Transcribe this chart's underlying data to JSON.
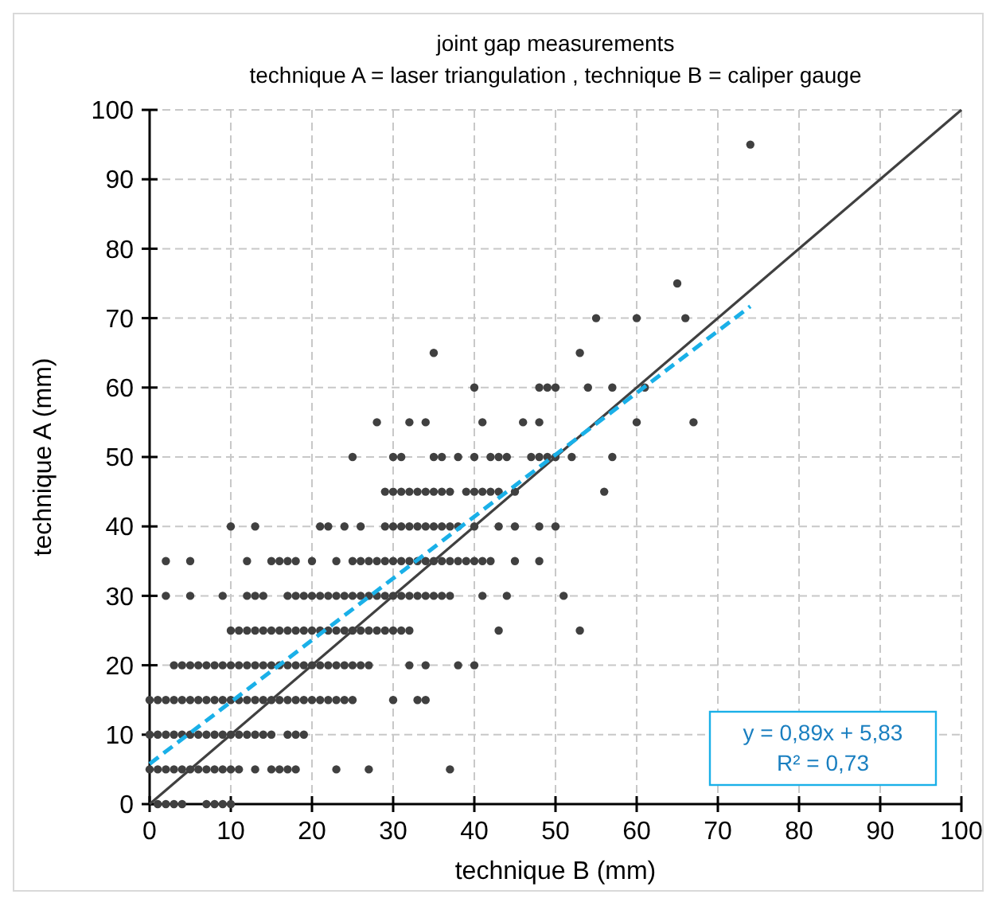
{
  "chart_data": {
    "type": "scatter",
    "title": "joint gap measurements",
    "subtitle": "technique A = laser triangulation , technique B = caliper gauge",
    "xlabel": "technique B (mm)",
    "ylabel": "technique A (mm)",
    "xlim": [
      0,
      100
    ],
    "ylim": [
      0,
      100
    ],
    "xticks": [
      0,
      10,
      20,
      30,
      40,
      50,
      60,
      70,
      80,
      90,
      100
    ],
    "yticks": [
      0,
      10,
      20,
      30,
      40,
      50,
      60,
      70,
      80,
      90,
      100
    ],
    "grid": true,
    "marker": "circle",
    "annotations": [
      "y = 0,89x + 5,83",
      "R² = 0,73"
    ],
    "series": [
      {
        "type": "scatter",
        "color": "#404040",
        "x": [
          1,
          2,
          3,
          4,
          7,
          8,
          9,
          10
        ],
        "values": [
          0,
          0,
          0,
          0,
          0,
          0,
          0,
          0
        ]
      },
      {
        "type": "scatter",
        "color": "#404040",
        "x": [
          0,
          1,
          2,
          3,
          4,
          5,
          6,
          7,
          8,
          9,
          10,
          11,
          13,
          15,
          16,
          17,
          18,
          23,
          27,
          37
        ],
        "values": [
          5,
          5,
          5,
          5,
          5,
          5,
          5,
          5,
          5,
          5,
          5,
          5,
          5,
          5,
          5,
          5,
          5,
          5,
          5,
          5
        ]
      },
      {
        "type": "scatter",
        "color": "#404040",
        "x": [
          0,
          1,
          2,
          3,
          4,
          5,
          6,
          7,
          8,
          9,
          10,
          11,
          12,
          13,
          14,
          15,
          17,
          18,
          19
        ],
        "values": [
          10,
          10,
          10,
          10,
          10,
          10,
          10,
          10,
          10,
          10,
          10,
          10,
          10,
          10,
          10,
          10,
          10,
          10,
          10
        ]
      },
      {
        "type": "scatter",
        "color": "#404040",
        "x": [
          0,
          1,
          2,
          3,
          4,
          5,
          6,
          7,
          8,
          9,
          10,
          11,
          12,
          13,
          14,
          15,
          16,
          17,
          18,
          19,
          20,
          21,
          22,
          23,
          24,
          25,
          30,
          33,
          34
        ],
        "values": [
          15,
          15,
          15,
          15,
          15,
          15,
          15,
          15,
          15,
          15,
          15,
          15,
          15,
          15,
          15,
          15,
          15,
          15,
          15,
          15,
          15,
          15,
          15,
          15,
          15,
          15,
          15,
          15,
          15
        ]
      },
      {
        "type": "scatter",
        "color": "#404040",
        "x": [
          3,
          4,
          5,
          6,
          7,
          8,
          9,
          10,
          11,
          12,
          13,
          14,
          15,
          16,
          17,
          18,
          19,
          20,
          21,
          22,
          23,
          24,
          25,
          26,
          27,
          32,
          34,
          38,
          40
        ],
        "values": [
          20,
          20,
          20,
          20,
          20,
          20,
          20,
          20,
          20,
          20,
          20,
          20,
          20,
          20,
          20,
          20,
          20,
          20,
          20,
          20,
          20,
          20,
          20,
          20,
          20,
          20,
          20,
          20,
          20
        ]
      },
      {
        "type": "scatter",
        "color": "#404040",
        "x": [
          10,
          11,
          12,
          13,
          14,
          15,
          16,
          17,
          18,
          19,
          20,
          21,
          22,
          23,
          24,
          25,
          26,
          27,
          28,
          29,
          30,
          31,
          32,
          43,
          53
        ],
        "values": [
          25,
          25,
          25,
          25,
          25,
          25,
          25,
          25,
          25,
          25,
          25,
          25,
          25,
          25,
          25,
          25,
          25,
          25,
          25,
          25,
          25,
          25,
          25,
          25,
          25
        ]
      },
      {
        "type": "scatter",
        "color": "#404040",
        "x": [
          2,
          5,
          9,
          12,
          13,
          14,
          17,
          18,
          19,
          20,
          21,
          22,
          23,
          24,
          25,
          26,
          27,
          28,
          29,
          30,
          31,
          32,
          33,
          34,
          35,
          36,
          37,
          41,
          44,
          51
        ],
        "values": [
          30,
          30,
          30,
          30,
          30,
          30,
          30,
          30,
          30,
          30,
          30,
          30,
          30,
          30,
          30,
          30,
          30,
          30,
          30,
          30,
          30,
          30,
          30,
          30,
          30,
          30,
          30,
          30,
          30,
          30
        ]
      },
      {
        "type": "scatter",
        "color": "#404040",
        "x": [
          2,
          5,
          12,
          15,
          16,
          17,
          18,
          20,
          23,
          25,
          26,
          27,
          28,
          29,
          30,
          31,
          32,
          33,
          34,
          35,
          36,
          37,
          38,
          39,
          40,
          41,
          42,
          45,
          48
        ],
        "values": [
          35,
          35,
          35,
          35,
          35,
          35,
          35,
          35,
          35,
          35,
          35,
          35,
          35,
          35,
          35,
          35,
          35,
          35,
          35,
          35,
          35,
          35,
          35,
          35,
          35,
          35,
          35,
          35,
          35
        ]
      },
      {
        "type": "scatter",
        "color": "#404040",
        "x": [
          10,
          13,
          21,
          22,
          24,
          26,
          29,
          30,
          31,
          32,
          33,
          34,
          35,
          36,
          37,
          38,
          40,
          43,
          45,
          48,
          50
        ],
        "values": [
          40,
          40,
          40,
          40,
          40,
          40,
          40,
          40,
          40,
          40,
          40,
          40,
          40,
          40,
          40,
          40,
          40,
          40,
          40,
          40,
          40
        ]
      },
      {
        "type": "scatter",
        "color": "#404040",
        "x": [
          29,
          30,
          31,
          32,
          33,
          34,
          35,
          36,
          37,
          39,
          40,
          41,
          42,
          43,
          45,
          56
        ],
        "values": [
          45,
          45,
          45,
          45,
          45,
          45,
          45,
          45,
          45,
          45,
          45,
          45,
          45,
          45,
          45,
          45
        ]
      },
      {
        "type": "scatter",
        "color": "#404040",
        "x": [
          25,
          30,
          31,
          35,
          36,
          38,
          40,
          42,
          43,
          44,
          47,
          48,
          49,
          50,
          52,
          57
        ],
        "values": [
          50,
          50,
          50,
          50,
          50,
          50,
          50,
          50,
          50,
          50,
          50,
          50,
          50,
          50,
          50,
          50
        ]
      },
      {
        "type": "scatter",
        "color": "#404040",
        "x": [
          28,
          32,
          34,
          41,
          46,
          48,
          60,
          67
        ],
        "values": [
          55,
          55,
          55,
          55,
          55,
          55,
          55,
          55
        ]
      },
      {
        "type": "scatter",
        "color": "#404040",
        "x": [
          40,
          48,
          49,
          50,
          54,
          57,
          61
        ],
        "values": [
          60,
          60,
          60,
          60,
          60,
          60,
          60
        ]
      },
      {
        "type": "scatter",
        "color": "#404040",
        "x": [
          35,
          53
        ],
        "values": [
          65,
          65
        ]
      },
      {
        "type": "scatter",
        "color": "#404040",
        "x": [
          55,
          60,
          66
        ],
        "values": [
          70,
          70,
          70
        ]
      },
      {
        "type": "scatter",
        "color": "#404040",
        "x": [
          65
        ],
        "values": [
          75
        ]
      },
      {
        "type": "scatter",
        "color": "#404040",
        "x": [
          74
        ],
        "values": [
          95
        ]
      },
      {
        "type": "line",
        "color": "#404040",
        "marker": "none",
        "line_style": "solid",
        "x": [
          0,
          100
        ],
        "values": [
          0,
          100
        ]
      },
      {
        "type": "line",
        "color": "#1ab0e8",
        "marker": "none",
        "line_style": "dashed",
        "x": [
          0,
          74
        ],
        "values": [
          5.8,
          71.7
        ]
      }
    ]
  }
}
